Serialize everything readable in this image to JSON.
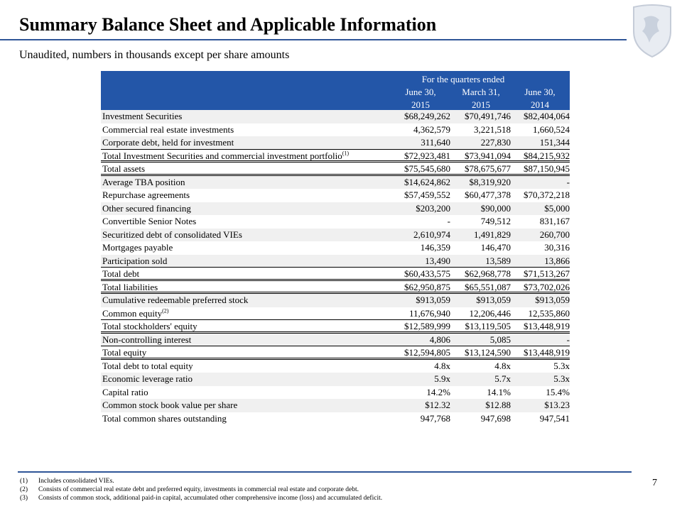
{
  "header": {
    "title": "Summary Balance Sheet and Applicable Information",
    "subtitle": "Unaudited, numbers in thousands except per share amounts"
  },
  "table": {
    "group_header": "For the quarters ended",
    "columns": [
      [
        "June 30,",
        "2015"
      ],
      [
        "March 31,",
        "2015"
      ],
      [
        "June 30,",
        "2014"
      ]
    ],
    "rows": [
      {
        "label": "Investment Securities",
        "values": [
          "$68,249,262",
          "$70,491,746",
          "$82,404,064"
        ]
      },
      {
        "label": "Commercial real estate investments",
        "values": [
          "4,362,579",
          "3,221,518",
          "1,660,524"
        ]
      },
      {
        "label": "Corporate debt, held for investment",
        "values": [
          "311,640",
          "227,830",
          "151,344"
        ]
      },
      {
        "label": "Total Investment Securities and commercial investment portfolio",
        "note": "(1)",
        "values": [
          "$72,923,481",
          "$73,941,094",
          "$84,215,932"
        ]
      },
      {
        "label": "Total assets",
        "values": [
          "$75,545,680",
          "$78,675,677",
          "$87,150,945"
        ]
      },
      {
        "label": "Average TBA position",
        "values": [
          "$14,624,862",
          "$8,319,920",
          "-"
        ]
      },
      {
        "label": "Repurchase agreements",
        "values": [
          "$57,459,552",
          "$60,477,378",
          "$70,372,218"
        ]
      },
      {
        "label": "Other secured financing",
        "values": [
          "$203,200",
          "$90,000",
          "$5,000"
        ]
      },
      {
        "label": "Convertible Senior Notes",
        "values": [
          "-",
          "749,512",
          "831,167"
        ]
      },
      {
        "label": "Securitized debt of consolidated VIEs",
        "values": [
          "2,610,974",
          "1,491,829",
          "260,700"
        ]
      },
      {
        "label": "Mortgages payable",
        "values": [
          "146,359",
          "146,470",
          "30,316"
        ]
      },
      {
        "label": "Participation sold",
        "values": [
          "13,490",
          "13,589",
          "13,866"
        ]
      },
      {
        "label": "Total debt",
        "values": [
          "$60,433,575",
          "$62,968,778",
          "$71,513,267"
        ]
      },
      {
        "label": "Total liabilities",
        "values": [
          "$62,950,875",
          "$65,551,087",
          "$73,702,026"
        ]
      },
      {
        "label": "Cumulative redeemable preferred stock",
        "values": [
          "$913,059",
          "$913,059",
          "$913,059"
        ]
      },
      {
        "label": "Common equity",
        "note": "(2)",
        "values": [
          "11,676,940",
          "12,206,446",
          "12,535,860"
        ]
      },
      {
        "label": "Total stockholders' equity",
        "values": [
          "$12,589,999",
          "$13,119,505",
          "$13,448,919"
        ]
      },
      {
        "label": "Non-controlling interest",
        "values": [
          "4,806",
          "5,085",
          "-"
        ]
      },
      {
        "label": "Total equity",
        "values": [
          "$12,594,805",
          "$13,124,590",
          "$13,448,919"
        ]
      },
      {
        "label": "Total debt to total equity",
        "values": [
          "4.8x",
          "4.8x",
          "5.3x"
        ]
      },
      {
        "label": "Economic leverage ratio",
        "values": [
          "5.9x",
          "5.7x",
          "5.3x"
        ]
      },
      {
        "label": "Capital ratio",
        "values": [
          "14.2%",
          "14.1%",
          "15.4%"
        ]
      },
      {
        "label": "Common stock book value per share",
        "values": [
          "$12.32",
          "$12.88",
          "$13.23"
        ]
      },
      {
        "label": "Total common shares outstanding",
        "values": [
          "947,768",
          "947,698",
          "947,541"
        ]
      }
    ]
  },
  "footnotes": [
    {
      "marker": "(1)",
      "text": "Includes consolidated VIEs."
    },
    {
      "marker": "(2)",
      "text": "Consists of commercial real estate debt and preferred equity, investments in commercial real estate and corporate debt."
    },
    {
      "marker": "(3)",
      "text": "Consists of common stock, additional paid-in capital, accumulated other comprehensive income (loss) and accumulated deficit."
    }
  ],
  "page_number": "7"
}
